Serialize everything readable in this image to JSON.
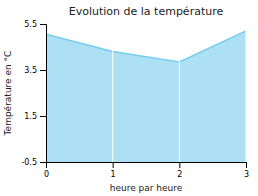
{
  "chart_data": {
    "type": "area",
    "title": "Evolution de la température",
    "x_label": "heure par heure",
    "y_label": "Température en °C",
    "x": [
      0,
      1,
      2,
      3
    ],
    "values": [
      5.05,
      4.3,
      3.85,
      5.2
    ],
    "baseline": -0.5,
    "color": "#77ccee",
    "xlim": [
      0,
      3
    ],
    "ylim": [
      -0.5,
      5.5
    ],
    "xticks": [
      0,
      1,
      2,
      3
    ],
    "yticks": [
      -0.5,
      1.5,
      3.5,
      5.5
    ],
    "grid": "x"
  }
}
